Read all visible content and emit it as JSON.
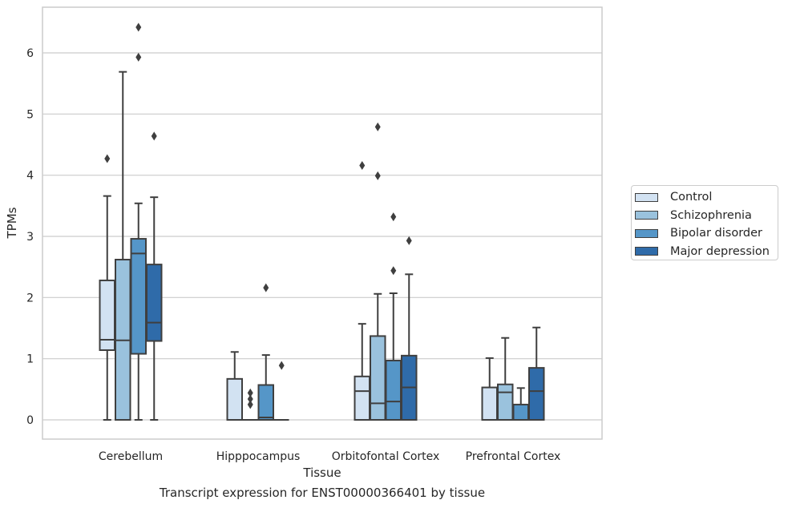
{
  "caption": "Transcript expression for ENST00000366401 by tissue",
  "chart_data": {
    "type": "box",
    "title": "",
    "xlabel": "Tissue",
    "ylabel": "TPMs",
    "ylim": [
      -0.3,
      6.75
    ],
    "yticks": [
      0,
      1,
      2,
      3,
      4,
      5,
      6
    ],
    "grid": "horizontal",
    "legend_position": "right",
    "categories": [
      "Cerebellum",
      "Hipppocampus",
      "Orbitofontal Cortex",
      "Prefrontal Cortex"
    ],
    "series": [
      {
        "name": "Control",
        "color": "#d2e2f2",
        "boxes": [
          {
            "min": 0,
            "q1": 1.14,
            "median": 1.31,
            "q3": 2.28,
            "max": 3.66,
            "outliers": [
              4.27
            ]
          },
          {
            "min": 0,
            "q1": 0,
            "median": 0,
            "q3": 0.67,
            "max": 1.11,
            "outliers": []
          },
          {
            "min": 0,
            "q1": 0,
            "median": 0.47,
            "q3": 0.71,
            "max": 1.57,
            "outliers": [
              4.16
            ]
          },
          {
            "min": 0,
            "q1": 0,
            "median": 0,
            "q3": 0.53,
            "max": 1.01,
            "outliers": []
          }
        ]
      },
      {
        "name": "Schizophrenia",
        "color": "#9ac2dd",
        "boxes": [
          {
            "min": 0,
            "q1": 0,
            "median": 1.3,
            "q3": 2.62,
            "max": 5.69,
            "outliers": []
          },
          {
            "min": 0,
            "q1": 0,
            "median": 0,
            "q3": 0,
            "max": 0,
            "outliers": [
              0.25,
              0.34,
              0.44
            ]
          },
          {
            "min": 0,
            "q1": 0,
            "median": 0.27,
            "q3": 1.37,
            "max": 2.06,
            "outliers": [
              3.99,
              4.79
            ]
          },
          {
            "min": 0,
            "q1": 0,
            "median": 0.45,
            "q3": 0.58,
            "max": 1.34,
            "outliers": []
          }
        ]
      },
      {
        "name": "Bipolar disorder",
        "color": "#5596c8",
        "boxes": [
          {
            "min": 0,
            "q1": 1.08,
            "median": 2.72,
            "q3": 2.96,
            "max": 3.54,
            "outliers": [
              5.93,
              6.42
            ]
          },
          {
            "min": 0,
            "q1": 0,
            "median": 0.04,
            "q3": 0.57,
            "max": 1.06,
            "outliers": [
              2.16
            ]
          },
          {
            "min": 0,
            "q1": 0,
            "median": 0.3,
            "q3": 0.97,
            "max": 2.07,
            "outliers": [
              2.44,
              3.32
            ]
          },
          {
            "min": 0,
            "q1": 0,
            "median": 0,
            "q3": 0.25,
            "max": 0.52,
            "outliers": []
          }
        ]
      },
      {
        "name": "Major depression",
        "color": "#2f6ba9",
        "boxes": [
          {
            "min": 0,
            "q1": 1.29,
            "median": 1.59,
            "q3": 2.54,
            "max": 3.64,
            "outliers": [
              4.64
            ]
          },
          {
            "min": 0,
            "q1": 0,
            "median": 0,
            "q3": 0,
            "max": 0,
            "outliers": [
              0.89
            ]
          },
          {
            "min": 0,
            "q1": 0,
            "median": 0.53,
            "q3": 1.05,
            "max": 2.38,
            "outliers": [
              2.93
            ]
          },
          {
            "min": 0,
            "q1": 0,
            "median": 0.47,
            "q3": 0.85,
            "max": 1.51,
            "outliers": []
          }
        ]
      }
    ]
  }
}
